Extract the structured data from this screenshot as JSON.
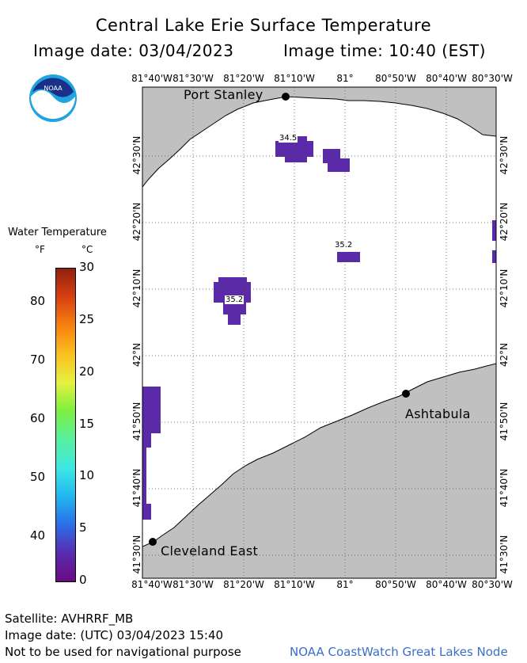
{
  "title": "Central Lake Erie Surface Temperature",
  "image_date_label": "Image date: 03/04/2023",
  "image_time_label": "Image time: 10:40 (EST)",
  "logo_text": "NOAA",
  "legend": {
    "title": "Water Temperature",
    "unit_f": "°F",
    "unit_c": "°C",
    "f_ticks": [
      "80",
      "70",
      "60",
      "50",
      "40"
    ],
    "c_ticks": [
      "30",
      "25",
      "20",
      "15",
      "10",
      "5",
      "0"
    ],
    "colorbar_colors": [
      "#6a0a80",
      "#5a2bb0",
      "#2a6ee8",
      "#22b8f0",
      "#3ee8e0",
      "#58f0a0",
      "#7cf040",
      "#e8f040",
      "#f8c020",
      "#f88010",
      "#d84010",
      "#902010"
    ]
  },
  "axes": {
    "top_ticks": [
      "81°40'W",
      "81°30'W",
      "81°20'W",
      "81°10'W",
      "81°",
      "80°50'W",
      "80°40'W",
      "80°30'W"
    ],
    "bottom_ticks": [
      "81°40'W",
      "81°30'W",
      "81°20'W",
      "81°10'W",
      "81°",
      "80°50'W",
      "80°40'W",
      "80°30'W"
    ],
    "lat_ticks": [
      "42°30'N",
      "42°20'N",
      "42°10'N",
      "42°N",
      "41°50'N",
      "41°40'N",
      "41°30'N"
    ]
  },
  "cities": [
    {
      "name": "Port Stanley"
    },
    {
      "name": "Ashtabula"
    },
    {
      "name": "Cleveland East"
    }
  ],
  "value_labels": [
    "34.5",
    "35.2",
    "35.2"
  ],
  "colors": {
    "land": "#c0c0c0",
    "water": "#ffffff",
    "cold_water": "#5a2aa8",
    "credit": "#3b6fc8"
  },
  "footer": {
    "satellite": "Satellite: AVHRRF_MB",
    "utc_date": "Image date: (UTC) 03/04/2023  15:40",
    "disclaimer": "Not to be used for navigational purpose",
    "credit": "NOAA CoastWatch Great Lakes Node"
  }
}
